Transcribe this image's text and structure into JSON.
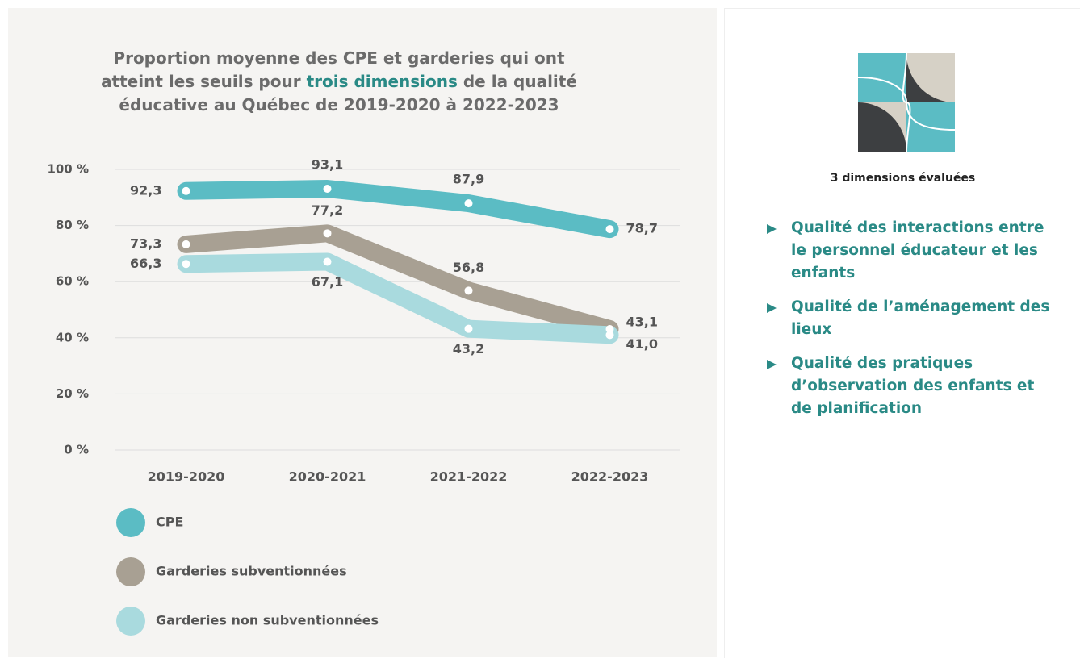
{
  "chart_data": {
    "type": "line",
    "title_before": "Proportion moyenne des CPE et garderies qui ont atteint les seuils pour ",
    "title_highlight": "trois dimensions",
    "title_after": " de la qualité éducative au Québec de 2019-2020 à 2022-2023",
    "categories": [
      "2019-2020",
      "2020-2021",
      "2021-2022",
      "2022-2023"
    ],
    "series": [
      {
        "name": "CPE",
        "color": "#5bbcc4",
        "values": [
          92.3,
          93.1,
          87.9,
          78.7
        ],
        "value_labels": [
          "92,3",
          "93,1",
          "87,9",
          "78,7"
        ]
      },
      {
        "name": "Garderies subventionnées",
        "color": "#a8a093",
        "values": [
          73.3,
          77.2,
          56.8,
          43.1
        ],
        "value_labels": [
          "73,3",
          "77,2",
          "56,8",
          "43,1"
        ]
      },
      {
        "name": "Garderies non subventionnées",
        "color": "#a9dade",
        "values": [
          66.3,
          67.1,
          43.2,
          41.0
        ],
        "value_labels": [
          "66,3",
          "67,1",
          "43,2",
          "41,0"
        ]
      }
    ],
    "ylim": [
      0,
      100
    ],
    "yticks": [
      {
        "value": 0,
        "label": "0 %"
      },
      {
        "value": 20,
        "label": "20 %"
      },
      {
        "value": 40,
        "label": "40 %"
      },
      {
        "value": 60,
        "label": "60 %"
      },
      {
        "value": 80,
        "label": "80 %"
      },
      {
        "value": 100,
        "label": "100 %"
      }
    ],
    "grid": true
  },
  "sidebar": {
    "heading": "3 dimensions évaluées",
    "items": [
      "Qualité des interactions entre le personnel éducateur et les enfants",
      "Qualité de l’aménagement des lieux",
      "Qualité des pratiques d’observation des enfants et de planification"
    ]
  }
}
